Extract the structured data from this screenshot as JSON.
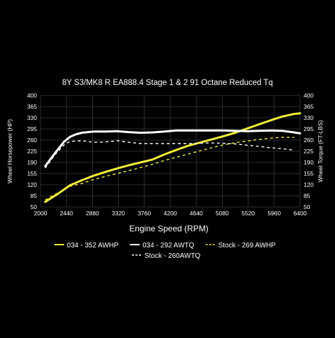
{
  "chart_data": {
    "type": "line",
    "title": "8Y S3/MK8 R EA888.4 Stage 1 & 2 91 Octane Reduced Tq",
    "xlabel": "Engine Speed (RPM)",
    "ylabel_left": "Wheel Horsepower (HP)",
    "ylabel_right": "Wheel Torque (FT-LBS)",
    "xlim": [
      2000,
      6400
    ],
    "ylim": [
      50,
      400
    ],
    "grid": true,
    "legend_position": "bottom",
    "x_ticks": [
      "2000",
      "2440",
      "2880",
      "3320",
      "3760",
      "4200",
      "4640",
      "5080",
      "5520",
      "5960",
      "6400"
    ],
    "y_ticks_left": [
      "50",
      "85",
      "120",
      "155",
      "190",
      "225",
      "260",
      "295",
      "330",
      "365",
      "400"
    ],
    "y_ticks_right": [
      "50",
      "85",
      "120",
      "155",
      "190",
      "225",
      "260",
      "295",
      "330",
      "365",
      "400"
    ],
    "colors": {
      "background": "#000000",
      "grid": "#3a3a3a",
      "white_series": "#ffffff",
      "yellow_series": "#f2ee3a"
    },
    "series": [
      {
        "name": "034 - 352 AWHP",
        "color": "#f2ee3a",
        "dash": "solid",
        "x": [
          2080,
          2300,
          2500,
          2700,
          2900,
          3100,
          3300,
          3500,
          3700,
          3900,
          4100,
          4300,
          4500,
          4700,
          4900,
          5100,
          5300,
          5500,
          5700,
          5900,
          6100,
          6300,
          6400
        ],
        "y": [
          66,
          92,
          118,
          134,
          148,
          160,
          171,
          181,
          190,
          199,
          215,
          229,
          242,
          252,
          262,
          272,
          283,
          296,
          309,
          322,
          334,
          342,
          344
        ]
      },
      {
        "name": "034 - 292 AWTQ",
        "color": "#ffffff",
        "dash": "solid",
        "x": [
          2080,
          2200,
          2300,
          2400,
          2500,
          2600,
          2700,
          2900,
          3100,
          3300,
          3500,
          3700,
          3900,
          4100,
          4300,
          4500,
          4700,
          4900,
          5100,
          5300,
          5500,
          5700,
          5900,
          6100,
          6300,
          6400
        ],
        "y": [
          178,
          208,
          232,
          255,
          270,
          278,
          283,
          287,
          287,
          288,
          285,
          283,
          284,
          287,
          290,
          290,
          290,
          290,
          290,
          289,
          288,
          289,
          290,
          289,
          284,
          281
        ]
      },
      {
        "name": "Stock - 269 AWHP",
        "color": "#f2ee3a",
        "dash": "dash",
        "x": [
          2080,
          2300,
          2500,
          2700,
          2900,
          3100,
          3300,
          3500,
          3700,
          3900,
          4100,
          4300,
          4500,
          4700,
          4900,
          5100,
          5300,
          5500,
          5700,
          5900,
          6100,
          6300
        ],
        "y": [
          72,
          95,
          115,
          124,
          136,
          146,
          155,
          164,
          174,
          184,
          196,
          206,
          216,
          226,
          236,
          245,
          252,
          257,
          262,
          266,
          269,
          268
        ]
      },
      {
        "name": "Stock - 260AWTQ",
        "color": "#ffffff",
        "dash": "dash",
        "x": [
          2080,
          2250,
          2400,
          2500,
          2700,
          2900,
          3100,
          3300,
          3500,
          3700,
          3900,
          4100,
          4300,
          4500,
          4700,
          4900,
          5100,
          5300,
          5500,
          5700,
          5900,
          6100,
          6300
        ],
        "y": [
          172,
          215,
          245,
          256,
          258,
          253,
          254,
          258,
          253,
          249,
          249,
          249,
          249,
          249,
          250,
          251,
          250,
          248,
          244,
          240,
          236,
          233,
          228
        ]
      }
    ]
  }
}
